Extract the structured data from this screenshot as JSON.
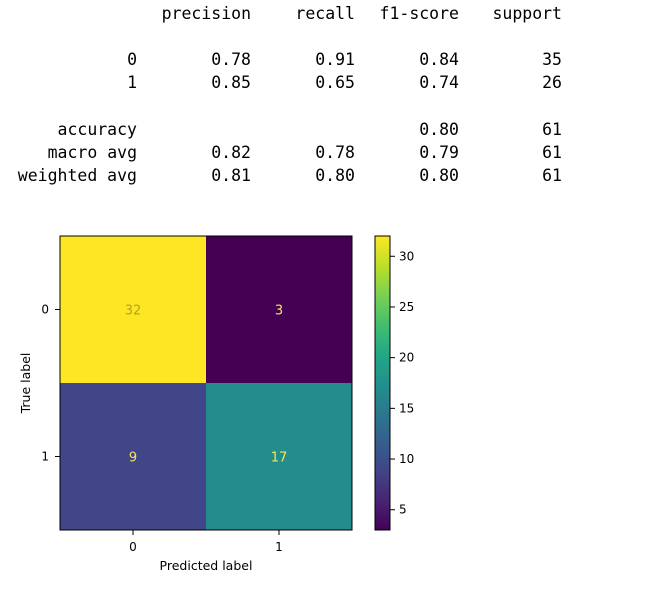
{
  "classification_report": {
    "headers": [
      "precision",
      "recall",
      "f1-score",
      "support"
    ],
    "rows": [
      {
        "label": "0",
        "precision": "0.78",
        "recall": "0.91",
        "f1_score": "0.84",
        "support": "35"
      },
      {
        "label": "1",
        "precision": "0.85",
        "recall": "0.65",
        "f1_score": "0.74",
        "support": "26"
      },
      {
        "label": "accuracy",
        "precision": "",
        "recall": "",
        "f1_score": "0.80",
        "support": "61"
      },
      {
        "label": "macro avg",
        "precision": "0.82",
        "recall": "0.78",
        "f1_score": "0.79",
        "support": "61"
      },
      {
        "label": "weighted avg",
        "precision": "0.81",
        "recall": "0.80",
        "f1_score": "0.80",
        "support": "61"
      }
    ]
  },
  "chart_data": {
    "type": "heatmap",
    "title": "",
    "xlabel": "Predicted label",
    "ylabel": "True label",
    "x_categories": [
      "0",
      "1"
    ],
    "y_categories": [
      "0",
      "1"
    ],
    "values": [
      [
        32,
        3
      ],
      [
        9,
        17
      ]
    ],
    "colorscale": "viridis",
    "colorbar": {
      "range": [
        3,
        32
      ],
      "ticks": [
        5,
        10,
        15,
        20,
        25,
        30
      ]
    },
    "cell_text_colors": {
      "on_light": "#b5a023",
      "on_dark": "#f4e55b"
    }
  }
}
